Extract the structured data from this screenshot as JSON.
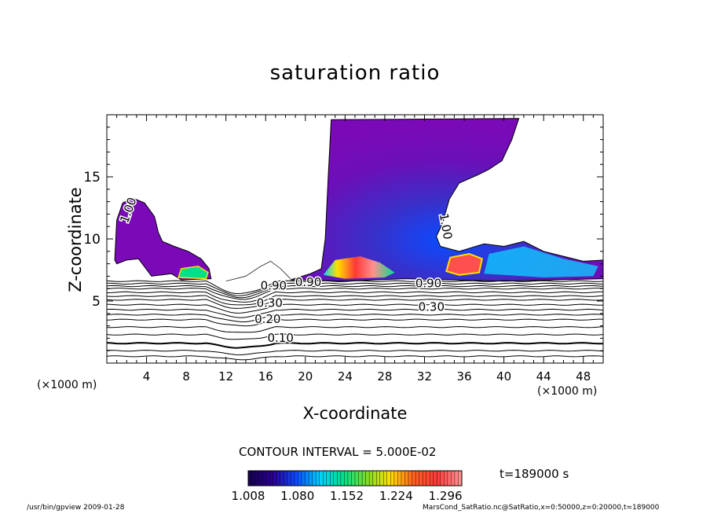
{
  "chart_data": {
    "type": "heatmap",
    "title": "saturation ratio",
    "xlabel": "X-coordinate",
    "ylabel": "Z-coordinate",
    "x_unit": "(×1000 m)",
    "xlim": [
      0,
      50
    ],
    "ylim": [
      0,
      20
    ],
    "x_ticks": [
      4,
      8,
      12,
      16,
      20,
      24,
      28,
      32,
      36,
      40,
      44,
      48
    ],
    "y_ticks": [
      5,
      10,
      15
    ],
    "contour_interval_text": "CONTOUR INTERVAL = 5.000E-02",
    "time_text": "t=189000 s",
    "colorbar": {
      "min": 1.008,
      "max": 1.32,
      "tick_values": [
        1.008,
        1.08,
        1.152,
        1.224,
        1.296
      ],
      "tick_labels": [
        "1.008",
        "1.080",
        "1.152",
        "1.224",
        "1.296"
      ],
      "colors": [
        "#150050",
        "#2c0096",
        "#0a4cff",
        "#00d2ff",
        "#00e08c",
        "#7adc28",
        "#ffe000",
        "#ff6020",
        "#ff3838",
        "#ff9090"
      ]
    },
    "contour_labels": [
      {
        "text": "0.10",
        "x": 17.5,
        "y": 2.0
      },
      {
        "text": "0.20",
        "x": 16.2,
        "y": 3.5
      },
      {
        "text": "0.30",
        "x": 16.4,
        "y": 4.8
      },
      {
        "text": "0.30",
        "x": 32.7,
        "y": 4.5
      },
      {
        "text": "0.90",
        "x": 16.8,
        "y": 6.2
      },
      {
        "text": "0.90",
        "x": 20.3,
        "y": 6.5
      },
      {
        "text": "0.90",
        "x": 32.4,
        "y": 6.4
      },
      {
        "text": "1.00",
        "x": 2.2,
        "y": 12.3
      },
      {
        "text": "1.00",
        "x": 34.1,
        "y": 11.0
      }
    ],
    "saturated_regions": [
      {
        "name": "left-plume",
        "x_range": [
          0.8,
          10.5
        ],
        "z_range": [
          6.7,
          13.3
        ]
      },
      {
        "name": "main-plume",
        "x_range": [
          18.5,
          44
        ],
        "z_range": [
          6.6,
          19.7
        ]
      },
      {
        "name": "right-layer",
        "x_range": [
          36,
          50
        ],
        "z_range": [
          6.6,
          9.8
        ]
      }
    ],
    "grid": false
  },
  "footer": {
    "left": "/usr/bin/gpview   2009-01-28",
    "right": "MarsCond_SatRatio.nc@SatRatio,x=0:50000,z=0:20000,t=189000"
  }
}
